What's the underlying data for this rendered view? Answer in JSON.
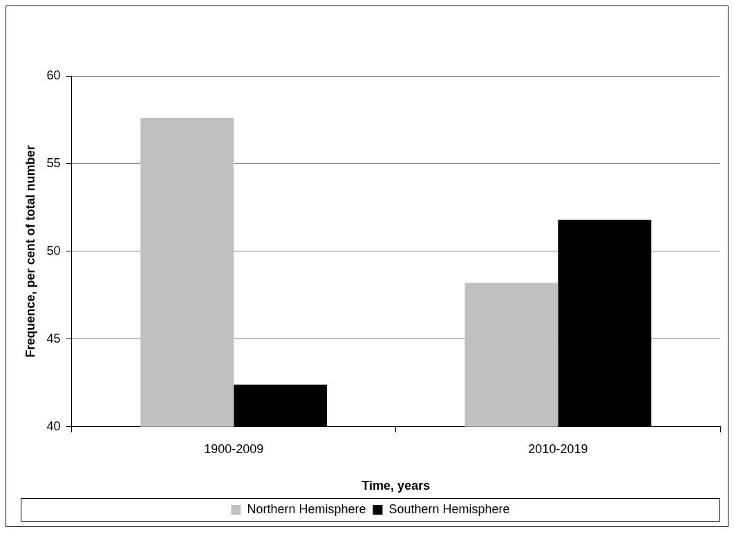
{
  "chart_data": {
    "type": "bar",
    "xlabel": "Time, years",
    "ylabel": "Frequence, per cent of total number",
    "categories": [
      "1900-2009",
      "2010-2019"
    ],
    "series": [
      {
        "name": "Northern Hemisphere",
        "color": "#c0c0c0",
        "values": [
          57.6,
          48.2
        ]
      },
      {
        "name": "Southern Hemisphere",
        "color": "#000000",
        "values": [
          42.4,
          51.8
        ]
      }
    ],
    "ylim": [
      40,
      60
    ],
    "yticks": [
      40,
      45,
      50,
      55,
      60
    ],
    "grid": "y",
    "legend": "bottom"
  }
}
